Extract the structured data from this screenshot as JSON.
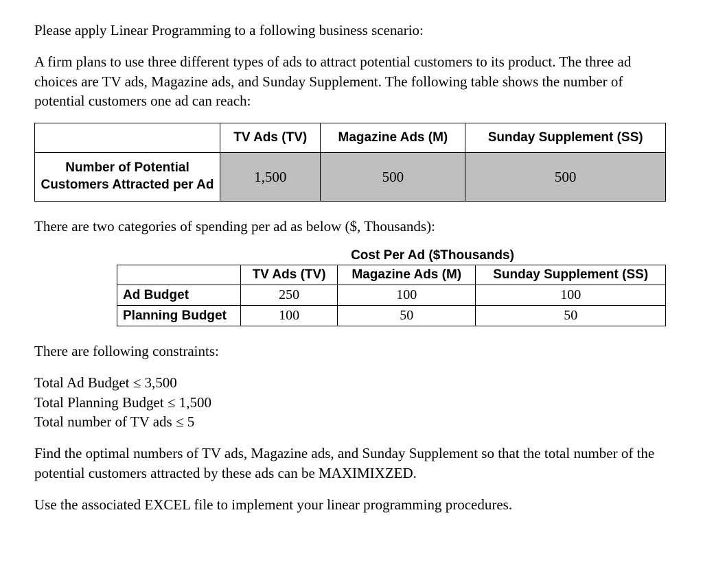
{
  "intro1": "Please apply Linear Programming to a following business scenario:",
  "intro2": "A firm plans to use three different types of ads to attract potential customers to its product. The three ad choices are TV ads, Magazine ads, and Sunday Supplement. The following table shows the number of potential customers one ad can reach:",
  "table1": {
    "headers": [
      "TV Ads (TV)",
      "Magazine Ads (M)",
      "Sunday Supplement (SS)"
    ],
    "row_label_line1": "Number of Potential",
    "row_label_line2": "Customers Attracted per Ad",
    "values": [
      "1,500",
      "500",
      "500"
    ],
    "shaded_bg": "#bfbfbf"
  },
  "mid1": "There are two categories of spending per ad as below ($, Thousands):",
  "table2": {
    "title": "Cost Per Ad ($Thousands)",
    "headers": [
      "TV Ads (TV)",
      "Magazine Ads (M)",
      "Sunday Supplement (SS)"
    ],
    "rows": [
      {
        "label": "Ad Budget",
        "values": [
          "250",
          "100",
          "100"
        ]
      },
      {
        "label": "Planning Budget",
        "values": [
          "100",
          "50",
          "50"
        ]
      }
    ]
  },
  "constraints_intro": "There are following constraints:",
  "constraints": [
    "Total Ad Budget ≤ 3,500",
    "Total Planning Budget ≤ 1,500",
    "Total number of TV ads ≤ 5"
  ],
  "closing1": "Find the optimal numbers of TV ads, Magazine ads, and Sunday Supplement so that the total number of the potential customers attracted by these ads can be MAXIMIXZED.",
  "closing2": "Use the associated EXCEL file to implement your linear programming procedures."
}
